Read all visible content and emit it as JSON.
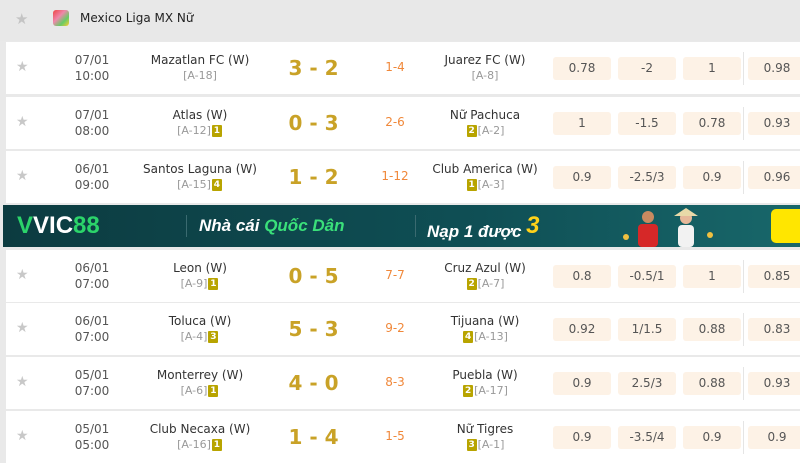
{
  "header": {
    "league": "Mexico Liga MX Nữ"
  },
  "banner": {
    "brand_v": "V",
    "brand_vic": "VIC",
    "brand_num": "88",
    "tagline_a": "Nhà cái ",
    "tagline_b": "Quốc Dân",
    "promo": "Nạp 1 được ",
    "promo_num": "3",
    "colors": {
      "bg": "#0f4f55",
      "green": "#2bd46a",
      "yellow": "#ffd21a"
    }
  },
  "colors": {
    "score": "#c9a227",
    "ht": "#f0883a",
    "badge": "#b8a400",
    "odd_bg": "#fdf2e6"
  },
  "matches": [
    {
      "date": "07/01",
      "time": "10:00",
      "home": "Mazatlan FC (W)",
      "home_rank": "[A-18]",
      "home_badge": "",
      "score": "3 - 2",
      "ht": "1-4",
      "away": "Juarez FC (W)",
      "away_rank": "[A-8]",
      "away_badge": "",
      "odds": [
        "0.78",
        "-2",
        "1",
        "0.98"
      ]
    },
    {
      "date": "07/01",
      "time": "08:00",
      "home": "Atlas (W)",
      "home_rank": "[A-12]",
      "home_badge": "1",
      "score": "0 - 3",
      "ht": "2-6",
      "away": "Nữ Pachuca",
      "away_rank": "[A-2]",
      "away_badge": "2",
      "odds": [
        "1",
        "-1.5",
        "0.78",
        "0.93"
      ]
    },
    {
      "date": "06/01",
      "time": "09:00",
      "home": "Santos Laguna (W)",
      "home_rank": "[A-15]",
      "home_badge": "4",
      "score": "1 - 2",
      "ht": "1-12",
      "away": "Club America (W)",
      "away_rank": "[A-3]",
      "away_badge": "1",
      "odds": [
        "0.9",
        "-2.5/3",
        "0.9",
        "0.96"
      ]
    },
    {
      "date": "06/01",
      "time": "07:00",
      "home": "Leon (W)",
      "home_rank": "[A-9]",
      "home_badge": "1",
      "score": "0 - 5",
      "ht": "7-7",
      "away": "Cruz Azul (W)",
      "away_rank": "[A-7]",
      "away_badge": "2",
      "odds": [
        "0.8",
        "-0.5/1",
        "1",
        "0.85"
      ]
    },
    {
      "date": "06/01",
      "time": "07:00",
      "home": "Toluca (W)",
      "home_rank": "[A-4]",
      "home_badge": "3",
      "score": "5 - 3",
      "ht": "9-2",
      "away": "Tijuana (W)",
      "away_rank": "[A-13]",
      "away_badge": "4",
      "odds": [
        "0.92",
        "1/1.5",
        "0.88",
        "0.83"
      ]
    },
    {
      "date": "05/01",
      "time": "07:00",
      "home": "Monterrey (W)",
      "home_rank": "[A-6]",
      "home_badge": "1",
      "score": "4 - 0",
      "ht": "8-3",
      "away": "Puebla (W)",
      "away_rank": "[A-17]",
      "away_badge": "2",
      "odds": [
        "0.9",
        "2.5/3",
        "0.88",
        "0.93"
      ]
    },
    {
      "date": "05/01",
      "time": "05:00",
      "home": "Club Necaxa (W)",
      "home_rank": "[A-16]",
      "home_badge": "1",
      "score": "1 - 4",
      "ht": "1-5",
      "away": "Nữ Tigres",
      "away_rank": "[A-1]",
      "away_badge": "3",
      "odds": [
        "0.9",
        "-3.5/4",
        "0.9",
        "0.9"
      ]
    }
  ]
}
